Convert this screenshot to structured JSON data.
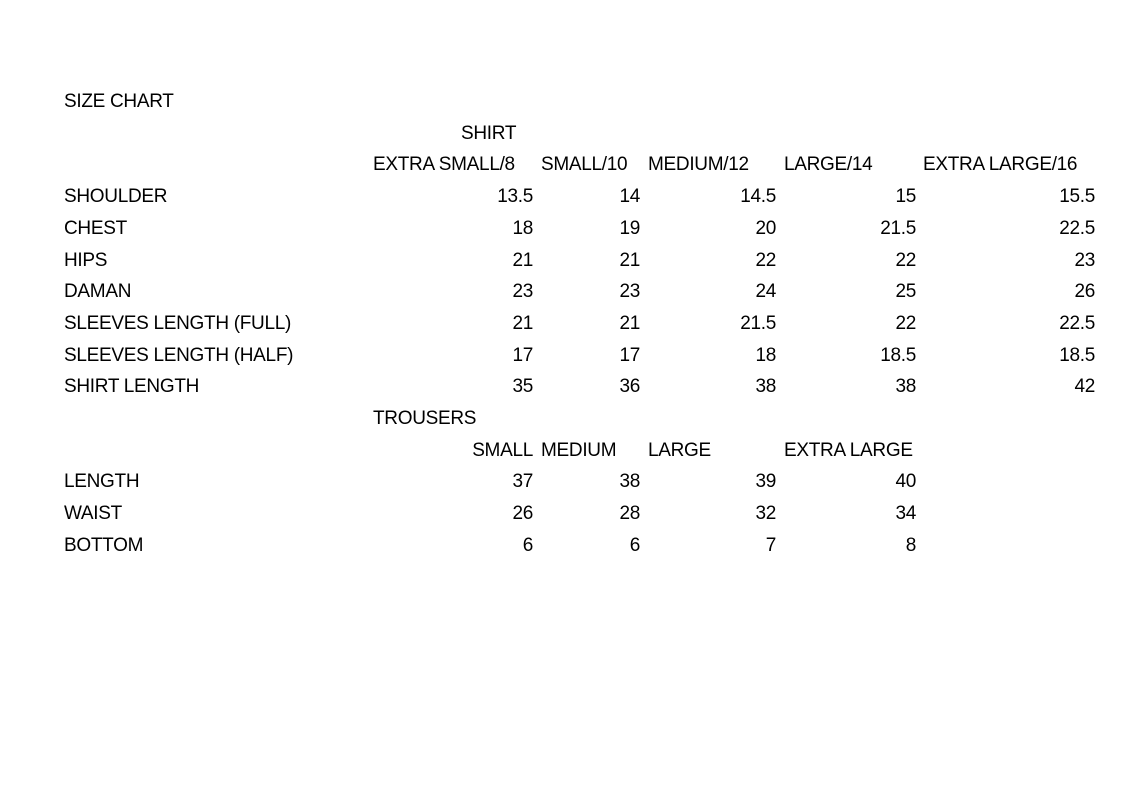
{
  "title": "SIZE CHART",
  "shirt": {
    "heading": "SHIRT",
    "sizes": [
      "EXTRA SMALL/8",
      "SMALL/10",
      "MEDIUM/12",
      "LARGE/14",
      "EXTRA LARGE/16"
    ],
    "rows": [
      {
        "label": "SHOULDER",
        "values": [
          "13.5",
          "14",
          "14.5",
          "15",
          "15.5"
        ]
      },
      {
        "label": "CHEST",
        "values": [
          "18",
          "19",
          "20",
          "21.5",
          "22.5"
        ]
      },
      {
        "label": "HIPS",
        "values": [
          "21",
          "21",
          "22",
          "22",
          "23"
        ]
      },
      {
        "label": "DAMAN",
        "values": [
          "23",
          "23",
          "24",
          "25",
          "26"
        ]
      },
      {
        "label": "SLEEVES LENGTH (FULL)",
        "values": [
          "21",
          "21",
          "21.5",
          "22",
          "22.5"
        ]
      },
      {
        "label": "SLEEVES LENGTH (HALF)",
        "values": [
          "17",
          "17",
          "18",
          "18.5",
          "18.5"
        ]
      },
      {
        "label": "SHIRT LENGTH",
        "values": [
          "35",
          "36",
          "38",
          "38",
          "42"
        ]
      }
    ]
  },
  "trousers": {
    "heading": "TROUSERS",
    "sizes": [
      "SMALL",
      "MEDIUM",
      "LARGE",
      "EXTRA LARGE"
    ],
    "rows": [
      {
        "label": "LENGTH",
        "values": [
          "37",
          "38",
          "39",
          "40"
        ]
      },
      {
        "label": "WAIST",
        "values": [
          "26",
          "28",
          "32",
          "34"
        ]
      },
      {
        "label": "BOTTOM",
        "values": [
          "6",
          "6",
          "7",
          "8"
        ]
      }
    ]
  }
}
